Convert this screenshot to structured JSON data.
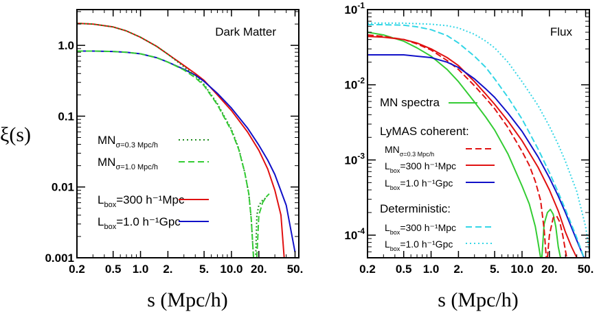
{
  "chart_data": [
    {
      "type": "line",
      "title": "Dark Matter",
      "xlabel": "s (Mpc/h)",
      "ylabel": "ξ(s)",
      "xscale": "log",
      "yscale": "log",
      "xlim": [
        0.2,
        55
      ],
      "ylim": [
        0.001,
        3.2
      ],
      "grid": false,
      "legend_placement": "bottom-left",
      "xticks": [
        {
          "v": 0.2,
          "label": "0.2"
        },
        {
          "v": 0.5,
          "label": "0.5"
        },
        {
          "v": 1.0,
          "label": "1.0"
        },
        {
          "v": 2.0,
          "label": "2."
        },
        {
          "v": 5.0,
          "label": "5."
        },
        {
          "v": 10.0,
          "label": "10.0"
        },
        {
          "v": 20.0,
          "label": "20."
        },
        {
          "v": 50.0,
          "label": "50."
        }
      ],
      "yticks": [
        {
          "v": 0.001,
          "label": "0.001"
        },
        {
          "v": 0.01,
          "label": "0.01"
        },
        {
          "v": 0.1,
          "label": "0.1"
        },
        {
          "v": 1.0,
          "label": "1.0"
        }
      ],
      "legend": [
        {
          "main": "MN",
          "sub": "σ=0.3 Mpc/h",
          "rest": "",
          "color": "#1a8a1a",
          "dash": "2,4"
        },
        {
          "main": "MN",
          "sub": "σ=1.0 Mpc/h",
          "rest": "",
          "color": "#33cc33",
          "dash": "9,5"
        },
        {
          "main": "L",
          "sub": "box",
          "rest": "=300 h⁻¹Mpc",
          "color": "#e01010",
          "dash": ""
        },
        {
          "main": "L",
          "sub": "box",
          "rest": "=1.0 h⁻¹Gpc",
          "color": "#1010c8",
          "dash": ""
        }
      ],
      "series": [
        {
          "color": "#e01010",
          "dash": "",
          "width": 2,
          "x": [
            0.2,
            0.3,
            0.5,
            0.7,
            1.0,
            1.5,
            2.0,
            3.0,
            4.0,
            5.0,
            7.0,
            10.0,
            15.0,
            20.0,
            25.0,
            30.0,
            35.0,
            38.0
          ],
          "y": [
            2.05,
            2.0,
            1.82,
            1.6,
            1.3,
            0.97,
            0.75,
            0.52,
            0.4,
            0.32,
            0.2,
            0.12,
            0.06,
            0.033,
            0.018,
            0.009,
            0.004,
            0.001
          ]
        },
        {
          "color": "#1010c8",
          "dash": "",
          "width": 2,
          "x": [
            0.2,
            0.3,
            0.5,
            0.7,
            1.0,
            1.5,
            2.0,
            3.0,
            4.0,
            5.0,
            7.0,
            10.0,
            15.0,
            20.0,
            25.0,
            30.0,
            40.0,
            50.0
          ],
          "y": [
            0.83,
            0.83,
            0.82,
            0.8,
            0.76,
            0.67,
            0.58,
            0.46,
            0.38,
            0.31,
            0.21,
            0.13,
            0.068,
            0.039,
            0.024,
            0.015,
            0.0055,
            0.0012
          ]
        },
        {
          "color": "#1a8a1a",
          "dash": "2,3",
          "width": 2,
          "x": [
            0.2,
            0.3,
            0.5,
            0.7,
            1.0,
            1.5,
            2.0,
            3.0,
            4.0,
            5.0,
            7.0,
            10.0,
            12.0,
            14.0,
            15.5,
            16.5,
            17.0,
            17.5
          ],
          "y": [
            2.05,
            2.0,
            1.82,
            1.6,
            1.3,
            0.97,
            0.75,
            0.5,
            0.37,
            0.28,
            0.15,
            0.065,
            0.035,
            0.016,
            0.008,
            0.0035,
            0.0018,
            0.001
          ]
        },
        {
          "color": "#1a8a1a",
          "dash": "2,3",
          "width": 2,
          "x": [
            18.5,
            19.0,
            20.0,
            22.0,
            24.0
          ],
          "y": [
            0.0011,
            0.004,
            0.0055,
            0.0065,
            0.007
          ]
        },
        {
          "color": "#33cc33",
          "dash": "9,4",
          "width": 2,
          "x": [
            0.2,
            0.3,
            0.5,
            0.7,
            1.0,
            1.5,
            2.0,
            3.0,
            4.0,
            5.0,
            7.0,
            10.0,
            12.0,
            14.0,
            15.5,
            16.5,
            17.0,
            17.5
          ],
          "y": [
            0.83,
            0.83,
            0.82,
            0.8,
            0.76,
            0.67,
            0.58,
            0.45,
            0.35,
            0.27,
            0.145,
            0.062,
            0.034,
            0.016,
            0.008,
            0.0035,
            0.0018,
            0.001
          ]
        },
        {
          "color": "#33cc33",
          "dash": "9,4",
          "width": 2,
          "x": [
            19.0,
            20.0,
            22.0,
            24.0,
            26.0
          ],
          "y": [
            0.001,
            0.004,
            0.006,
            0.0072,
            0.008
          ]
        }
      ]
    },
    {
      "type": "line",
      "title": "Flux",
      "xlabel": "s (Mpc/h)",
      "ylabel": "",
      "xscale": "log",
      "yscale": "log",
      "xlim": [
        0.2,
        55
      ],
      "ylim": [
        5e-05,
        0.1
      ],
      "grid": false,
      "legend_placement": "bottom-left",
      "xticks": [
        {
          "v": 0.2,
          "label": "0.2"
        },
        {
          "v": 0.5,
          "label": "0.5"
        },
        {
          "v": 1.0,
          "label": "1.0"
        },
        {
          "v": 2.0,
          "label": "2."
        },
        {
          "v": 5.0,
          "label": "5."
        },
        {
          "v": 10.0,
          "label": "10.0"
        },
        {
          "v": 20.0,
          "label": "20."
        },
        {
          "v": 50.0,
          "label": "50."
        }
      ],
      "yticks": [
        {
          "v": 0.0001,
          "base": "10",
          "exp": "-4"
        },
        {
          "v": 0.001,
          "base": "10",
          "exp": "-3"
        },
        {
          "v": 0.01,
          "base": "10",
          "exp": "-2"
        },
        {
          "v": 0.1,
          "base": "10",
          "exp": "-1"
        }
      ],
      "legend_headers": [
        "MN spectra",
        "LyMAS coherent:",
        "Deterministic:"
      ],
      "legend": [
        {
          "main": "MN",
          "sub": "σ=0.3 Mpc/h",
          "rest": "",
          "color": "#e01010",
          "dash": "9,5"
        },
        {
          "main": "L",
          "sub": "box",
          "rest": "=300 h⁻¹Mpc",
          "color": "#e01010",
          "dash": ""
        },
        {
          "main": "L",
          "sub": "box",
          "rest": "=1.0 h⁻¹Gpc",
          "color": "#1010c8",
          "dash": ""
        },
        {
          "main": "L",
          "sub": "box",
          "rest": "=300 h⁻¹Mpc",
          "color": "#33d6e6",
          "dash": "9,5"
        },
        {
          "main": "L",
          "sub": "box",
          "rest": "=1.0 h⁻¹Gpc",
          "color": "#33d6e6",
          "dash": "2,4"
        }
      ],
      "mn_spectra_color": "#33cc33",
      "series": [
        {
          "color": "#33cc33",
          "dash": "",
          "width": 2,
          "x": [
            0.2,
            0.3,
            0.5,
            0.7,
            1.0,
            1.5,
            2.0,
            3.0,
            4.0,
            5.0,
            7.0,
            10.0,
            12.0,
            14.0,
            15.0,
            16.0
          ],
          "y": [
            0.05,
            0.046,
            0.038,
            0.031,
            0.024,
            0.016,
            0.011,
            0.0059,
            0.0037,
            0.0025,
            0.0012,
            0.00045,
            0.00026,
            0.00013,
            8e-05,
            5e-05
          ]
        },
        {
          "color": "#33cc33",
          "dash": "",
          "width": 2,
          "x": [
            16.5,
            17.5,
            19.0,
            20.5,
            22.0,
            23.5,
            25.0,
            26.5
          ],
          "y": [
            5e-05,
            0.00014,
            0.0002,
            0.00022,
            0.00019,
            0.00013,
            7e-05,
            5e-05
          ]
        },
        {
          "color": "#e01010",
          "dash": "",
          "width": 2,
          "x": [
            0.2,
            0.3,
            0.5,
            0.7,
            1.0,
            1.5,
            2.0,
            3.0,
            4.0,
            5.0,
            7.0,
            10.0,
            15.0,
            20.0,
            25.0,
            30.0,
            35.0,
            40.0
          ],
          "y": [
            0.044,
            0.043,
            0.04,
            0.036,
            0.03,
            0.023,
            0.018,
            0.011,
            0.0075,
            0.0055,
            0.0033,
            0.0018,
            0.0008,
            0.0004,
            0.00021,
            0.00011,
            7e-05,
            5e-05
          ]
        },
        {
          "color": "#e01010",
          "dash": "9,4",
          "width": 2,
          "x": [
            0.2,
            0.3,
            0.5,
            0.7,
            1.0,
            1.5,
            2.0,
            3.0,
            4.0,
            5.0,
            7.0,
            10.0,
            12.0,
            14.0,
            16.0,
            17.5,
            18.5
          ],
          "y": [
            0.046,
            0.044,
            0.04,
            0.035,
            0.029,
            0.021,
            0.016,
            0.0097,
            0.0066,
            0.0048,
            0.0027,
            0.0013,
            0.00085,
            0.00052,
            0.00029,
            0.00012,
            5e-05
          ]
        },
        {
          "color": "#e01010",
          "dash": "9,4",
          "width": 2,
          "x": [
            19.0,
            20.0,
            22.0,
            24.0,
            26.0,
            28.0,
            31.0
          ],
          "y": [
            5e-05,
            0.0001,
            0.00017,
            0.00018,
            0.00015,
            0.0001,
            5e-05
          ]
        },
        {
          "color": "#1010c8",
          "dash": "",
          "width": 2,
          "x": [
            0.2,
            0.3,
            0.5,
            0.7,
            1.0,
            1.5,
            2.0,
            3.0,
            4.0,
            5.0,
            7.0,
            10.0,
            15.0,
            20.0,
            25.0,
            30.0,
            40.0,
            48.0
          ],
          "y": [
            0.025,
            0.025,
            0.025,
            0.024,
            0.023,
            0.02,
            0.017,
            0.012,
            0.0088,
            0.0068,
            0.0042,
            0.0024,
            0.0011,
            0.00058,
            0.00033,
            0.0002,
            8.5e-05,
            5e-05
          ]
        },
        {
          "color": "#33d6e6",
          "dash": "9,4",
          "width": 2,
          "x": [
            0.2,
            0.3,
            0.5,
            0.7,
            1.0,
            1.5,
            2.0,
            3.0,
            4.0,
            5.0,
            7.0,
            10.0,
            15.0,
            20.0,
            25.0,
            30.0,
            40.0,
            48.0
          ],
          "y": [
            0.063,
            0.063,
            0.062,
            0.059,
            0.054,
            0.045,
            0.036,
            0.024,
            0.017,
            0.012,
            0.0068,
            0.0035,
            0.0014,
            0.00068,
            0.00037,
            0.00022,
            9.2e-05,
            5e-05
          ]
        },
        {
          "color": "#33d6e6",
          "dash": "2,3",
          "width": 2,
          "x": [
            0.2,
            0.3,
            0.5,
            0.7,
            1.0,
            1.5,
            2.0,
            3.0,
            4.0,
            5.0,
            7.0,
            10.0,
            15.0,
            20.0,
            25.0,
            30.0,
            40.0,
            50.0,
            55.0
          ],
          "y": [
            0.066,
            0.066,
            0.066,
            0.065,
            0.064,
            0.061,
            0.057,
            0.047,
            0.038,
            0.031,
            0.02,
            0.011,
            0.0053,
            0.0028,
            0.0016,
            0.00096,
            0.00038,
            0.00013,
            6e-05
          ]
        }
      ]
    }
  ]
}
